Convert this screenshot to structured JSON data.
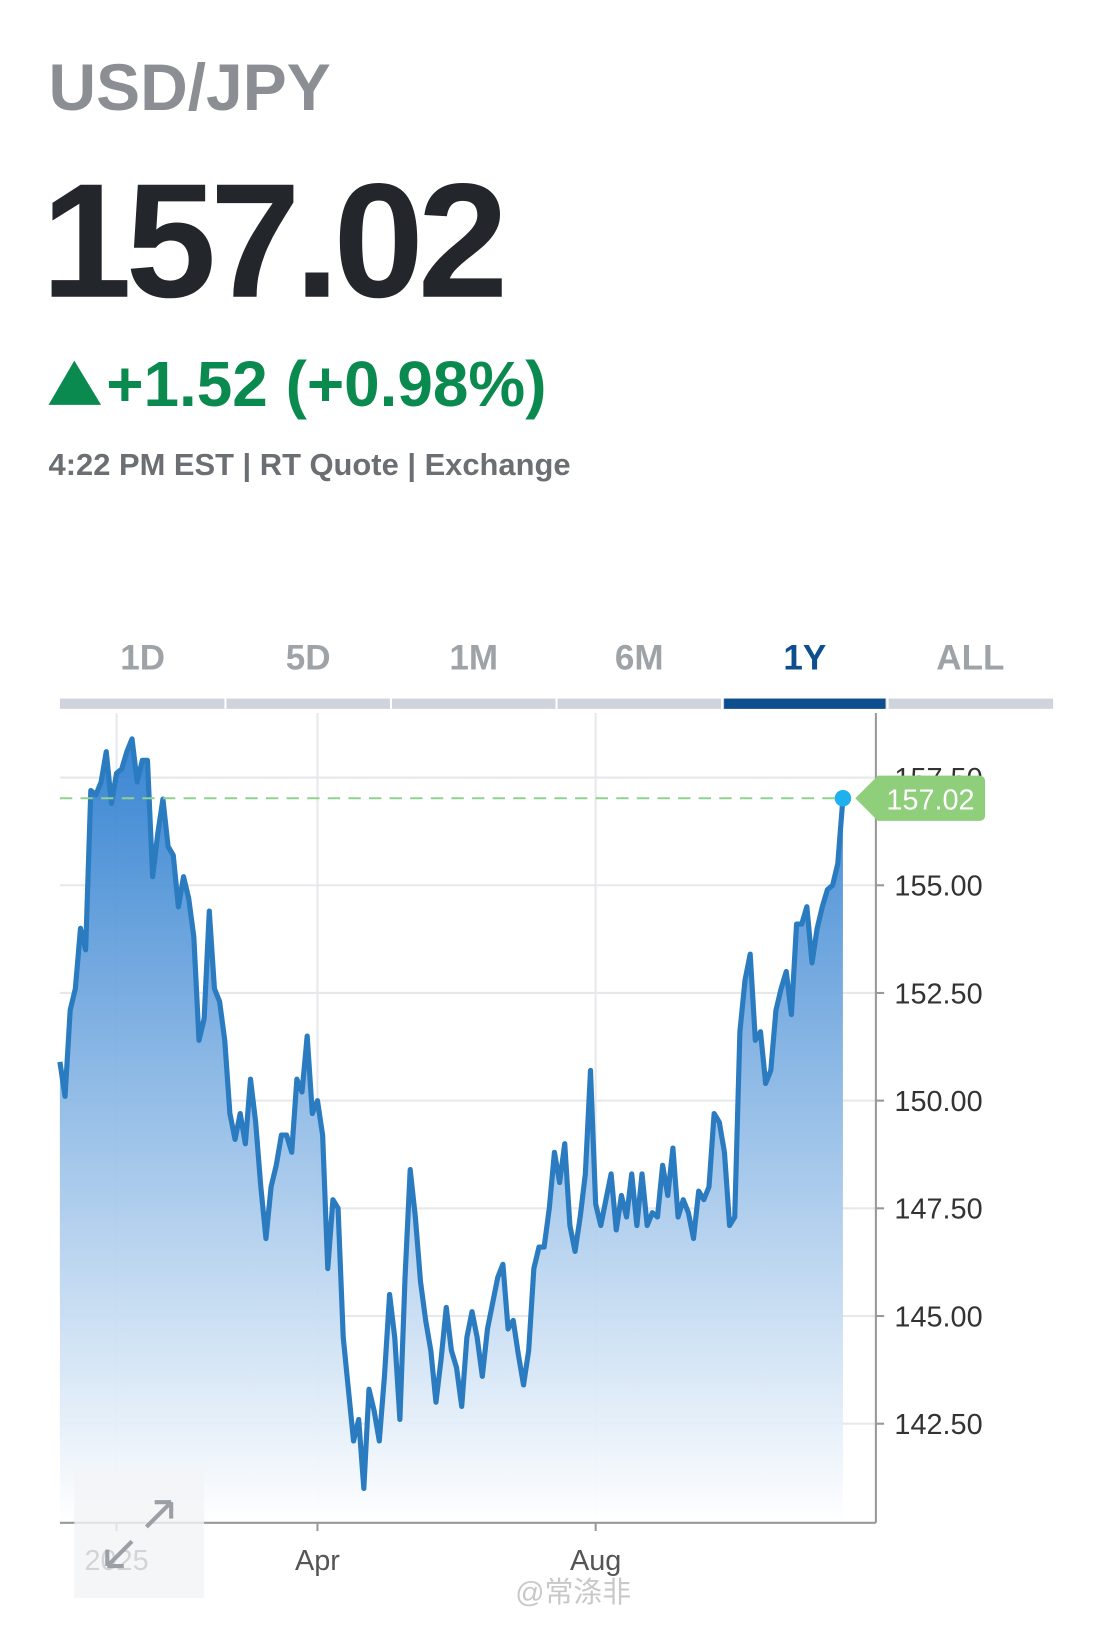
{
  "header": {
    "symbol": "USD/JPY",
    "price": "157.02",
    "change": "+1.52 (+0.98%)",
    "meta": "4:22 PM EST | RT Quote | Exchange"
  },
  "tabs": {
    "items": [
      "1D",
      "5D",
      "1M",
      "6M",
      "1Y",
      "ALL"
    ],
    "active": "1Y"
  },
  "chart_data": {
    "type": "area",
    "color": "#2a7bc0",
    "current_value": 157.02,
    "grid": true,
    "categories": [
      null,
      null,
      null,
      null,
      null,
      null,
      null,
      null,
      null,
      null,
      null,
      "2025",
      null,
      null,
      null,
      null,
      null,
      null,
      null,
      null,
      null,
      null,
      null,
      null,
      null,
      null,
      null,
      null,
      null,
      null,
      null,
      null,
      null,
      null,
      null,
      null,
      null,
      null,
      null,
      null,
      null,
      null,
      null,
      null,
      null,
      null,
      null,
      null,
      null,
      null,
      "Apr",
      null,
      null,
      null,
      null,
      null,
      null,
      null,
      null,
      null,
      null,
      null,
      null,
      null,
      null,
      null,
      null,
      null,
      null,
      null,
      null,
      null,
      null,
      null,
      null,
      null,
      null,
      null,
      null,
      null,
      null,
      null,
      null,
      null,
      null,
      null,
      null,
      null,
      null,
      null,
      null,
      null,
      null,
      null,
      null,
      null,
      null,
      null,
      null,
      null,
      null,
      null,
      null,
      null,
      "Aug",
      null,
      null,
      null,
      null,
      null,
      null,
      null,
      null,
      null,
      null,
      null,
      null,
      null,
      null,
      null,
      null,
      null,
      null,
      null,
      null,
      null,
      null,
      null,
      null,
      null,
      null,
      null,
      null,
      null,
      null,
      null,
      null,
      null,
      null,
      null,
      null,
      null,
      null,
      null,
      null,
      null,
      null,
      null,
      null,
      null,
      null,
      null,
      null
    ],
    "values": [
      150.9,
      150.1,
      152.1,
      152.6,
      154.0,
      153.5,
      157.2,
      157.1,
      157.4,
      158.1,
      156.9,
      157.6,
      157.7,
      158.1,
      158.4,
      157.4,
      157.9,
      157.9,
      155.2,
      156.2,
      157.0,
      155.9,
      155.7,
      154.5,
      155.2,
      154.7,
      153.8,
      151.4,
      151.9,
      154.4,
      152.6,
      152.3,
      151.4,
      149.7,
      149.1,
      149.7,
      149.0,
      150.5,
      149.5,
      148.0,
      146.8,
      148.0,
      148.5,
      149.2,
      149.2,
      148.8,
      150.5,
      150.2,
      151.5,
      149.7,
      150.0,
      149.2,
      146.1,
      147.7,
      147.5,
      144.5,
      143.3,
      142.1,
      142.6,
      141.0,
      143.3,
      142.8,
      142.1,
      143.6,
      145.5,
      144.5,
      142.6,
      145.9,
      148.4,
      147.3,
      145.8,
      144.9,
      144.2,
      143.0,
      144.0,
      145.2,
      144.2,
      143.8,
      142.9,
      144.5,
      145.1,
      144.5,
      143.6,
      144.7,
      145.3,
      145.9,
      146.2,
      144.7,
      144.9,
      144.1,
      143.4,
      144.2,
      146.1,
      146.6,
      146.6,
      147.5,
      148.8,
      148.1,
      149.0,
      147.1,
      146.5,
      147.3,
      148.3,
      150.7,
      147.6,
      147.1,
      147.7,
      148.3,
      147.0,
      147.8,
      147.3,
      148.3,
      147.1,
      148.3,
      147.1,
      147.4,
      147.3,
      148.5,
      147.8,
      148.9,
      147.3,
      147.7,
      147.4,
      146.8,
      147.9,
      147.7,
      148.0,
      149.7,
      149.5,
      148.8,
      147.1,
      147.3,
      151.6,
      152.8,
      153.4,
      151.4,
      151.6,
      150.4,
      150.7,
      152.1,
      152.6,
      153.0,
      152.0,
      154.1,
      154.1,
      154.5,
      153.2,
      154.0,
      154.5,
      154.9,
      155.0,
      155.5,
      157.02
    ],
    "ylim": [
      140.2,
      159.0
    ],
    "yticks": [
      {
        "value": 142.5,
        "label": "142.50"
      },
      {
        "value": 145,
        "label": "145.00"
      },
      {
        "value": 147.5,
        "label": "147.50"
      },
      {
        "value": 150,
        "label": "150.00"
      },
      {
        "value": 152.5,
        "label": "152.50"
      },
      {
        "value": 155,
        "label": "155.00"
      },
      {
        "value": 157.5,
        "label": "157.50"
      }
    ]
  },
  "watermark": "@常涤非"
}
